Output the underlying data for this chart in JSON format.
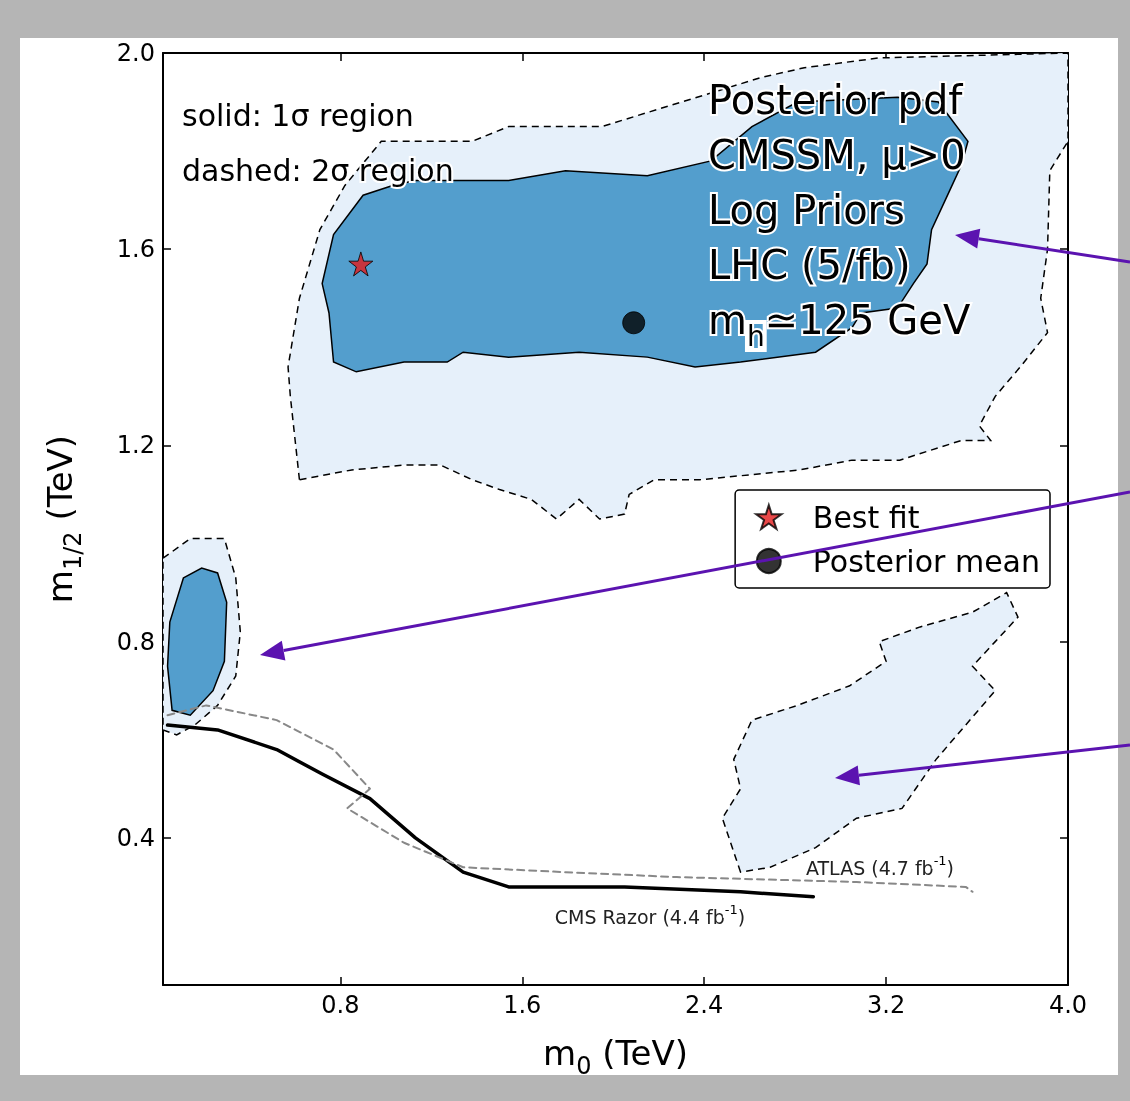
{
  "chart_data": {
    "type": "line",
    "xlabel": "m$_{0}$ (TeV)",
    "ylabel": "m$_{1/2}$ (TeV)",
    "xlim": [
      0.02,
      4.0
    ],
    "ylim": [
      0.1,
      2.0
    ],
    "xticks": [
      0.8,
      1.6,
      2.4,
      3.2,
      {
        "value": 4.0,
        "label": "4.0"
      }
    ],
    "yticks": [
      0.4,
      0.8,
      1.2,
      1.6,
      {
        "value": 2.0,
        "label": "2.0"
      }
    ],
    "grid": false,
    "legend": "right",
    "series": [
      {
        "type": "area",
        "color": "#e6f0fa",
        "line_style": "dashed",
        "x": [
          0.62,
          0.58,
          0.57,
          0.62,
          0.71,
          0.82,
          0.98,
          1.38,
          1.54,
          1.95,
          2.3,
          2.65,
          2.84,
          3.17,
          4.0,
          4.0,
          3.92,
          3.91,
          3.88,
          3.91,
          3.79,
          3.68,
          3.61,
          3.66,
          3.53,
          3.26,
          3.05,
          2.82,
          2.38,
          2.18,
          2.07,
          2.05,
          1.94,
          1.85,
          1.75,
          1.64,
          1.5,
          1.38,
          1.24,
          1.08,
          0.85
        ],
        "values": [
          1.13,
          1.3,
          1.36,
          1.5,
          1.64,
          1.73,
          1.82,
          1.82,
          1.85,
          1.85,
          1.9,
          1.95,
          1.97,
          1.99,
          2.0,
          1.82,
          1.76,
          1.6,
          1.5,
          1.43,
          1.36,
          1.3,
          1.24,
          1.21,
          1.21,
          1.17,
          1.17,
          1.15,
          1.13,
          1.13,
          1.1,
          1.06,
          1.05,
          1.09,
          1.05,
          1.09,
          1.11,
          1.13,
          1.16,
          1.16,
          1.15
        ]
      },
      {
        "type": "area",
        "color": "#e6f0fa",
        "line_style": "dashed",
        "x": [
          0.02,
          0.14,
          0.29,
          0.34,
          0.36,
          0.34,
          0.26,
          0.16,
          0.08,
          0.02
        ],
        "values": [
          0.97,
          1.01,
          1.01,
          0.93,
          0.82,
          0.73,
          0.67,
          0.63,
          0.61,
          0.62
        ]
      },
      {
        "type": "area",
        "color": "#e6f0fa",
        "line_style": "dashed",
        "x": [
          2.56,
          2.48,
          2.56,
          2.53,
          2.61,
          2.81,
          3.04,
          3.2,
          3.17,
          3.35,
          3.58,
          3.73,
          3.78,
          3.68,
          3.58,
          3.68,
          3.55,
          3.42,
          3.27,
          3.07,
          2.89,
          2.69
        ],
        "values": [
          0.33,
          0.44,
          0.5,
          0.56,
          0.64,
          0.67,
          0.71,
          0.76,
          0.8,
          0.83,
          0.86,
          0.9,
          0.85,
          0.8,
          0.75,
          0.7,
          0.63,
          0.56,
          0.46,
          0.44,
          0.38,
          0.34
        ]
      },
      {
        "type": "area",
        "color": "#539ecd",
        "line_style": "solid",
        "x": [
          0.77,
          0.75,
          0.72,
          0.77,
          0.9,
          1.03,
          1.13,
          1.54,
          1.79,
          2.15,
          2.43,
          2.61,
          2.81,
          3.25,
          3.43,
          3.56,
          3.53,
          3.48,
          3.4,
          3.38,
          3.32,
          3.25,
          3.09,
          3.05,
          2.89,
          2.56,
          2.36,
          2.15,
          1.85,
          1.54,
          1.34,
          1.27,
          1.08,
          0.87
        ],
        "values": [
          1.37,
          1.47,
          1.53,
          1.63,
          1.71,
          1.73,
          1.74,
          1.74,
          1.76,
          1.75,
          1.78,
          1.85,
          1.9,
          1.91,
          1.9,
          1.82,
          1.77,
          1.72,
          1.64,
          1.57,
          1.53,
          1.48,
          1.47,
          1.44,
          1.39,
          1.37,
          1.36,
          1.38,
          1.39,
          1.38,
          1.39,
          1.37,
          1.37,
          1.35
        ]
      },
      {
        "type": "area",
        "color": "#539ecd",
        "line_style": "solid",
        "x": [
          0.11,
          0.19,
          0.26,
          0.3,
          0.29,
          0.24,
          0.14,
          0.06,
          0.04,
          0.05
        ],
        "values": [
          0.93,
          0.95,
          0.94,
          0.88,
          0.76,
          0.7,
          0.65,
          0.66,
          0.75,
          0.84
        ]
      },
      {
        "color": "#000000",
        "line_style": "solid",
        "x": [
          0.04,
          0.26,
          0.52,
          0.72,
          0.93,
          1.13,
          1.34,
          1.54,
          2.05,
          2.56,
          2.88
        ],
        "values": [
          0.63,
          0.62,
          0.58,
          0.53,
          0.48,
          0.4,
          0.33,
          0.3,
          0.3,
          0.29,
          0.28
        ]
      },
      {
        "color": "#888888",
        "line_style": "dashed",
        "x": [
          0.04,
          0.21,
          0.52,
          0.77,
          0.93,
          0.83,
          1.08,
          1.34,
          1.79,
          2.28,
          3.07,
          3.55,
          3.58
        ],
        "values": [
          0.65,
          0.67,
          0.64,
          0.58,
          0.5,
          0.46,
          0.39,
          0.34,
          0.33,
          0.32,
          0.31,
          0.3,
          0.29
        ]
      },
      {
        "type": "scatter",
        "name": "Best fit",
        "color": "#e41a1c",
        "marker": "star",
        "x": [
          0.89
        ],
        "values": [
          1.57
        ]
      },
      {
        "type": "scatter",
        "name": "Posterior mean",
        "color": "#000000",
        "marker": "circle",
        "x": [
          2.09
        ],
        "values": [
          1.45
        ]
      }
    ],
    "annotations": [
      "solid: 1σ region",
      "dashed: 2σ region",
      "Posterior pdf",
      "CMSSM, μ>0",
      "Log Priors",
      "LHC (5/fb)",
      "m$_{h}$≃125 GeV",
      "CMS Razor (4.4 fb$^{-1}$)",
      "ATLAS (4.7 fb$^{-1}$)"
    ]
  }
}
